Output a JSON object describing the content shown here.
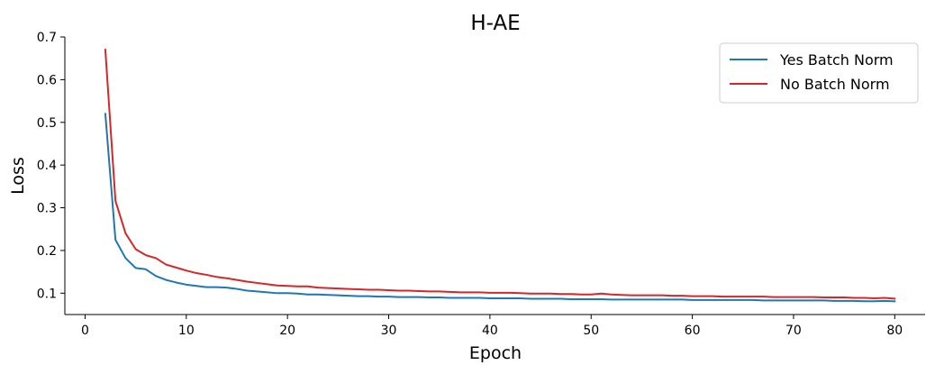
{
  "chart_data": {
    "type": "line",
    "title": "H-AE",
    "xlabel": "Epoch",
    "ylabel": "Loss",
    "xlim": [
      -2,
      83
    ],
    "ylim": [
      0.05,
      0.7
    ],
    "xticks": [
      0,
      10,
      20,
      30,
      40,
      50,
      60,
      70,
      80
    ],
    "yticks": [
      0.1,
      0.2,
      0.3,
      0.4,
      0.5,
      0.6,
      0.7
    ],
    "xtick_labels": [
      "0",
      "10",
      "20",
      "30",
      "40",
      "50",
      "60",
      "70",
      "80"
    ],
    "ytick_labels": [
      "0.1",
      "0.2",
      "0.3",
      "0.4",
      "0.5",
      "0.6",
      "0.7"
    ],
    "grid": false,
    "legend_position": "top-right",
    "x": [
      2,
      3,
      4,
      5,
      6,
      7,
      8,
      9,
      10,
      11,
      12,
      13,
      14,
      15,
      16,
      17,
      18,
      19,
      20,
      21,
      22,
      23,
      24,
      25,
      26,
      27,
      28,
      29,
      30,
      31,
      32,
      33,
      34,
      35,
      36,
      37,
      38,
      39,
      40,
      41,
      42,
      43,
      44,
      45,
      46,
      47,
      48,
      49,
      50,
      51,
      52,
      53,
      54,
      55,
      56,
      57,
      58,
      59,
      60,
      61,
      62,
      63,
      64,
      65,
      66,
      67,
      68,
      69,
      70,
      71,
      72,
      73,
      74,
      75,
      76,
      77,
      78,
      79,
      80
    ],
    "series": [
      {
        "name": "Yes Batch Norm",
        "color": "#1f77b4",
        "values": [
          0.52,
          0.225,
          0.182,
          0.159,
          0.156,
          0.14,
          0.131,
          0.125,
          0.12,
          0.117,
          0.114,
          0.114,
          0.113,
          0.11,
          0.106,
          0.104,
          0.102,
          0.1,
          0.1,
          0.099,
          0.097,
          0.097,
          0.096,
          0.095,
          0.094,
          0.093,
          0.093,
          0.092,
          0.092,
          0.091,
          0.091,
          0.091,
          0.09,
          0.09,
          0.089,
          0.089,
          0.089,
          0.089,
          0.088,
          0.088,
          0.088,
          0.088,
          0.087,
          0.087,
          0.087,
          0.087,
          0.086,
          0.086,
          0.086,
          0.086,
          0.085,
          0.085,
          0.085,
          0.085,
          0.085,
          0.085,
          0.085,
          0.085,
          0.084,
          0.084,
          0.084,
          0.084,
          0.084,
          0.084,
          0.084,
          0.083,
          0.083,
          0.083,
          0.083,
          0.083,
          0.083,
          0.083,
          0.082,
          0.082,
          0.082,
          0.081,
          0.081,
          0.082,
          0.081
        ]
      },
      {
        "name": "No Batch Norm",
        "color": "#d62728",
        "values": [
          0.67,
          0.316,
          0.24,
          0.203,
          0.189,
          0.182,
          0.167,
          0.16,
          0.153,
          0.147,
          0.143,
          0.138,
          0.135,
          0.131,
          0.127,
          0.124,
          0.121,
          0.118,
          0.117,
          0.116,
          0.116,
          0.113,
          0.112,
          0.111,
          0.11,
          0.109,
          0.108,
          0.108,
          0.107,
          0.106,
          0.106,
          0.105,
          0.104,
          0.104,
          0.103,
          0.102,
          0.102,
          0.102,
          0.101,
          0.101,
          0.101,
          0.1,
          0.099,
          0.099,
          0.099,
          0.098,
          0.098,
          0.097,
          0.097,
          0.099,
          0.097,
          0.096,
          0.095,
          0.095,
          0.095,
          0.095,
          0.094,
          0.094,
          0.093,
          0.093,
          0.093,
          0.092,
          0.092,
          0.092,
          0.092,
          0.092,
          0.091,
          0.091,
          0.091,
          0.091,
          0.091,
          0.09,
          0.09,
          0.09,
          0.089,
          0.089,
          0.088,
          0.089,
          0.087
        ]
      }
    ]
  }
}
